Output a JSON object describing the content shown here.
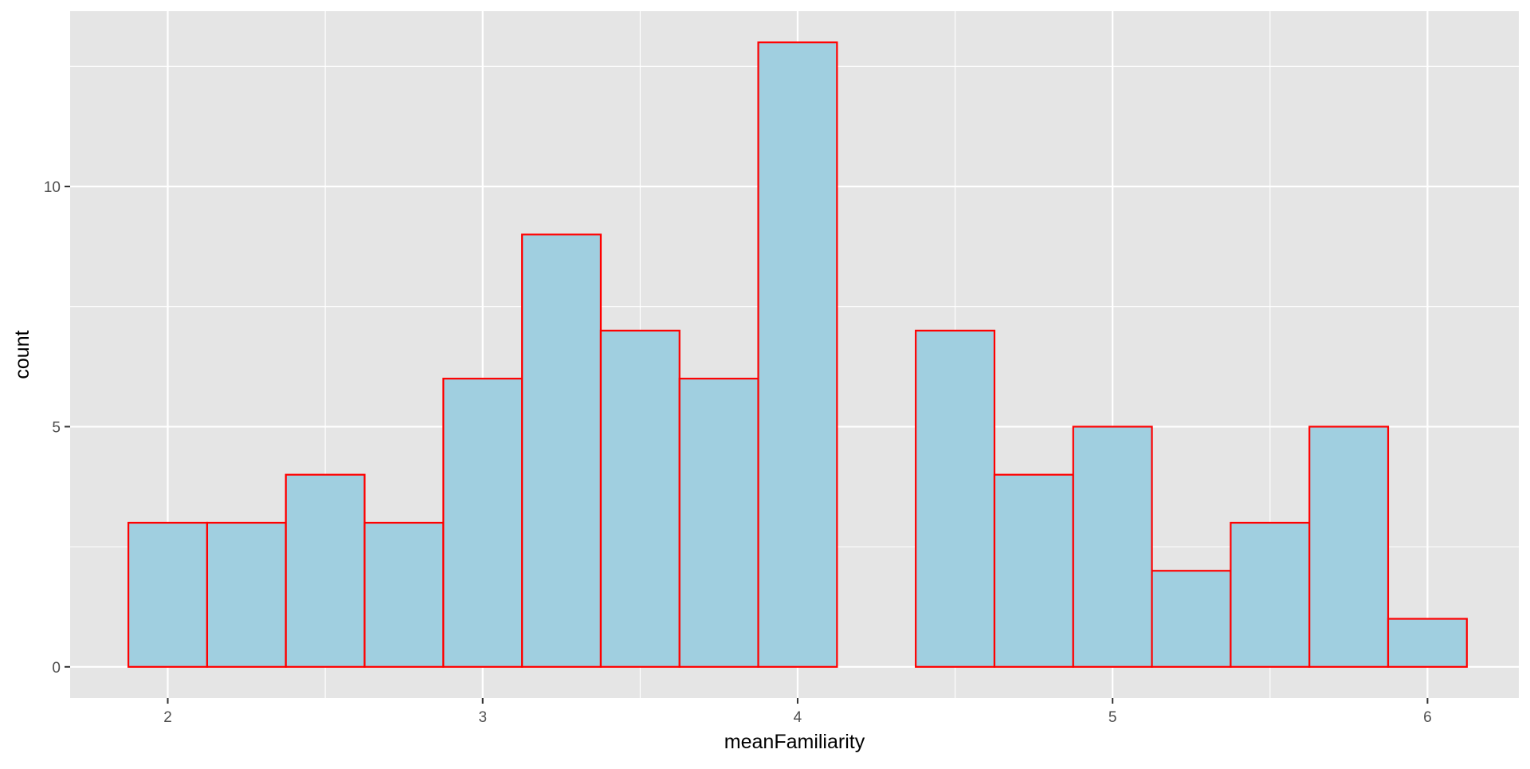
{
  "chart_data": {
    "type": "bar",
    "subtype": "histogram",
    "xlabel": "meanFamiliarity",
    "ylabel": "count",
    "bin_width": 0.25,
    "bin_centers": [
      2.0,
      2.25,
      2.5,
      2.75,
      3.0,
      3.25,
      3.5,
      3.75,
      4.0,
      4.25,
      4.5,
      4.75,
      5.0,
      5.25,
      5.5,
      5.75,
      6.0
    ],
    "values": [
      3,
      3,
      4,
      3,
      6,
      9,
      7,
      6,
      13,
      0,
      7,
      4,
      5,
      2,
      3,
      5,
      1
    ],
    "xlim": [
      1.69,
      6.29
    ],
    "ylim": [
      -0.65,
      13.65
    ],
    "x_ticks": [
      2,
      3,
      4,
      5,
      6
    ],
    "x_tick_labels": [
      "2",
      "3",
      "4",
      "5",
      "6"
    ],
    "y_ticks": [
      0,
      5,
      10
    ],
    "y_tick_labels": [
      "0",
      "5",
      "10"
    ],
    "grid": true,
    "colors": {
      "panel_background": "#E5E5E5",
      "grid_line": "#FFFFFF",
      "bar_fill": "#A0CFE0",
      "bar_outline": "#FF0000",
      "axis_text": "#4D4D4D",
      "axis_title": "#000000"
    }
  }
}
